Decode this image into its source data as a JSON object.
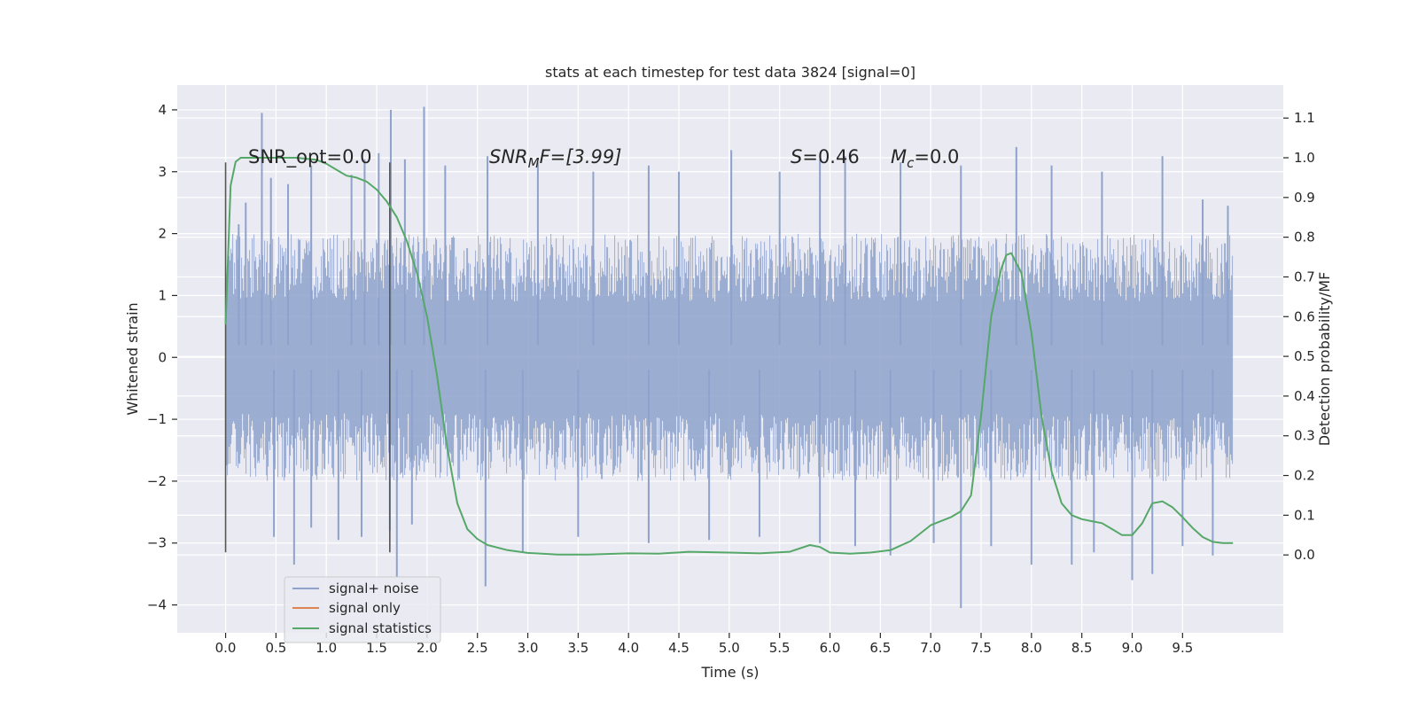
{
  "chart_data": {
    "type": "line",
    "title": "stats at each timestep for test data 3824 [signal=0]",
    "xlabel": "Time (s)",
    "ylabel": "Whitened strain",
    "y2label": "Detection probability/MF",
    "xlim": [
      -0.48,
      10.5
    ],
    "ylim": [
      -4.45,
      4.4
    ],
    "y2lim": [
      -0.196,
      1.183
    ],
    "x_ticks": [
      "0.0",
      "0.5",
      "1.0",
      "1.5",
      "2.0",
      "2.5",
      "3.0",
      "3.5",
      "4.0",
      "4.5",
      "5.0",
      "5.5",
      "6.0",
      "6.5",
      "7.0",
      "7.5",
      "8.0",
      "8.5",
      "9.0",
      "9.5"
    ],
    "y_ticks": [
      "4",
      "3",
      "2",
      "1",
      "0",
      "−1",
      "−2",
      "−3",
      "−4"
    ],
    "y2_ticks": [
      "1.1",
      "1.0",
      "0.9",
      "0.8",
      "0.7",
      "0.6",
      "0.5",
      "0.4",
      "0.3",
      "0.2",
      "0.1",
      "0.0"
    ],
    "grid": true,
    "legend_position": "lower-left",
    "annotations": {
      "snr_opt": "SNR_opt=0.0",
      "snr_mf_main": "SNR",
      "snr_mf_sub": "M",
      "snr_mf_rest": "F=[3.99]",
      "s_main": "S",
      "s_rest": "=0.46",
      "mc_main": "M",
      "mc_sub": "c",
      "mc_rest": "=0.0"
    },
    "markers": {
      "vertical_lines_x": [
        0.0,
        1.63
      ],
      "y_range": [
        -3.15,
        3.15
      ]
    },
    "colors": {
      "plot_background": "#eaeaf2",
      "grid": "#ffffff",
      "noise": "#8ea2cc",
      "signal_only": "#dd8452",
      "statistics": "#55a868",
      "marker_line": "#555555"
    },
    "series": [
      {
        "name": "signal+ noise",
        "axis": "left",
        "x_range": [
          0.0,
          10.0
        ],
        "band_lower": -2.0,
        "band_upper": 2.0,
        "peaks": [
          {
            "x": 0.36,
            "y": 3.95
          },
          {
            "x": 0.13,
            "y": 2.15
          },
          {
            "x": 0.2,
            "y": 2.5
          },
          {
            "x": 0.45,
            "y": 2.9
          },
          {
            "x": 0.62,
            "y": 2.8
          },
          {
            "x": 0.85,
            "y": 3.1
          },
          {
            "x": 1.25,
            "y": 2.95
          },
          {
            "x": 1.38,
            "y": 3.2
          },
          {
            "x": 1.52,
            "y": 3.3
          },
          {
            "x": 1.64,
            "y": 4.0
          },
          {
            "x": 1.78,
            "y": 3.2
          },
          {
            "x": 1.97,
            "y": 4.05
          },
          {
            "x": 2.18,
            "y": 3.1
          },
          {
            "x": 2.6,
            "y": 3.25
          },
          {
            "x": 3.1,
            "y": 3.15
          },
          {
            "x": 3.65,
            "y": 3.0
          },
          {
            "x": 4.2,
            "y": 3.1
          },
          {
            "x": 4.5,
            "y": 3.0
          },
          {
            "x": 5.02,
            "y": 3.35
          },
          {
            "x": 5.5,
            "y": 3.0
          },
          {
            "x": 5.9,
            "y": 3.2
          },
          {
            "x": 6.15,
            "y": 3.25
          },
          {
            "x": 6.7,
            "y": 3.15
          },
          {
            "x": 7.3,
            "y": 3.1
          },
          {
            "x": 7.85,
            "y": 3.4
          },
          {
            "x": 8.2,
            "y": 3.1
          },
          {
            "x": 8.7,
            "y": 3.0
          },
          {
            "x": 9.3,
            "y": 3.25
          },
          {
            "x": 9.7,
            "y": 2.55
          },
          {
            "x": 9.95,
            "y": 2.45
          }
        ],
        "troughs": [
          {
            "x": 0.48,
            "y": -2.9
          },
          {
            "x": 0.68,
            "y": -3.35
          },
          {
            "x": 0.85,
            "y": -2.75
          },
          {
            "x": 1.12,
            "y": -2.95
          },
          {
            "x": 1.35,
            "y": -2.9
          },
          {
            "x": 1.63,
            "y": -2.8
          },
          {
            "x": 1.7,
            "y": -3.55
          },
          {
            "x": 1.85,
            "y": -2.7
          },
          {
            "x": 2.58,
            "y": -3.7
          },
          {
            "x": 2.95,
            "y": -3.15
          },
          {
            "x": 3.5,
            "y": -2.9
          },
          {
            "x": 4.2,
            "y": -3.0
          },
          {
            "x": 4.8,
            "y": -2.95
          },
          {
            "x": 5.3,
            "y": -2.9
          },
          {
            "x": 5.9,
            "y": -3.0
          },
          {
            "x": 6.25,
            "y": -3.05
          },
          {
            "x": 6.6,
            "y": -3.2
          },
          {
            "x": 7.03,
            "y": -3.0
          },
          {
            "x": 7.3,
            "y": -4.05
          },
          {
            "x": 7.6,
            "y": -3.05
          },
          {
            "x": 8.0,
            "y": -3.35
          },
          {
            "x": 8.4,
            "y": -3.35
          },
          {
            "x": 8.62,
            "y": -3.15
          },
          {
            "x": 9.0,
            "y": -3.6
          },
          {
            "x": 9.2,
            "y": -3.5
          },
          {
            "x": 9.5,
            "y": -3.05
          },
          {
            "x": 9.8,
            "y": -3.2
          }
        ]
      },
      {
        "name": "signal only",
        "axis": "left",
        "x": [],
        "y": []
      },
      {
        "name": "signal statistics",
        "axis": "right",
        "x": [
          0.0,
          0.05,
          0.1,
          0.15,
          0.2,
          0.3,
          0.5,
          0.7,
          0.9,
          1.0,
          1.1,
          1.2,
          1.3,
          1.4,
          1.5,
          1.6,
          1.7,
          1.8,
          1.9,
          2.0,
          2.1,
          2.2,
          2.3,
          2.4,
          2.5,
          2.6,
          2.8,
          3.0,
          3.3,
          3.6,
          4.0,
          4.3,
          4.6,
          5.0,
          5.3,
          5.6,
          5.8,
          5.9,
          6.0,
          6.2,
          6.4,
          6.6,
          6.8,
          7.0,
          7.2,
          7.3,
          7.4,
          7.5,
          7.6,
          7.7,
          7.75,
          7.8,
          7.9,
          8.0,
          8.1,
          8.2,
          8.3,
          8.4,
          8.5,
          8.6,
          8.7,
          8.8,
          8.9,
          9.0,
          9.1,
          9.2,
          9.3,
          9.4,
          9.5,
          9.6,
          9.7,
          9.8,
          9.9,
          10.0
        ],
        "y": [
          0.58,
          0.93,
          0.99,
          1.0,
          1.0,
          1.0,
          1.0,
          1.0,
          0.995,
          0.985,
          0.97,
          0.955,
          0.95,
          0.94,
          0.92,
          0.89,
          0.85,
          0.79,
          0.71,
          0.6,
          0.45,
          0.27,
          0.13,
          0.065,
          0.04,
          0.025,
          0.012,
          0.005,
          0.001,
          0.001,
          0.004,
          0.003,
          0.008,
          0.006,
          0.004,
          0.008,
          0.025,
          0.02,
          0.006,
          0.003,
          0.006,
          0.012,
          0.035,
          0.075,
          0.095,
          0.11,
          0.15,
          0.35,
          0.6,
          0.72,
          0.755,
          0.76,
          0.71,
          0.56,
          0.35,
          0.21,
          0.13,
          0.1,
          0.09,
          0.085,
          0.08,
          0.065,
          0.05,
          0.05,
          0.08,
          0.13,
          0.135,
          0.12,
          0.095,
          0.068,
          0.045,
          0.033,
          0.03,
          0.03
        ]
      }
    ]
  }
}
